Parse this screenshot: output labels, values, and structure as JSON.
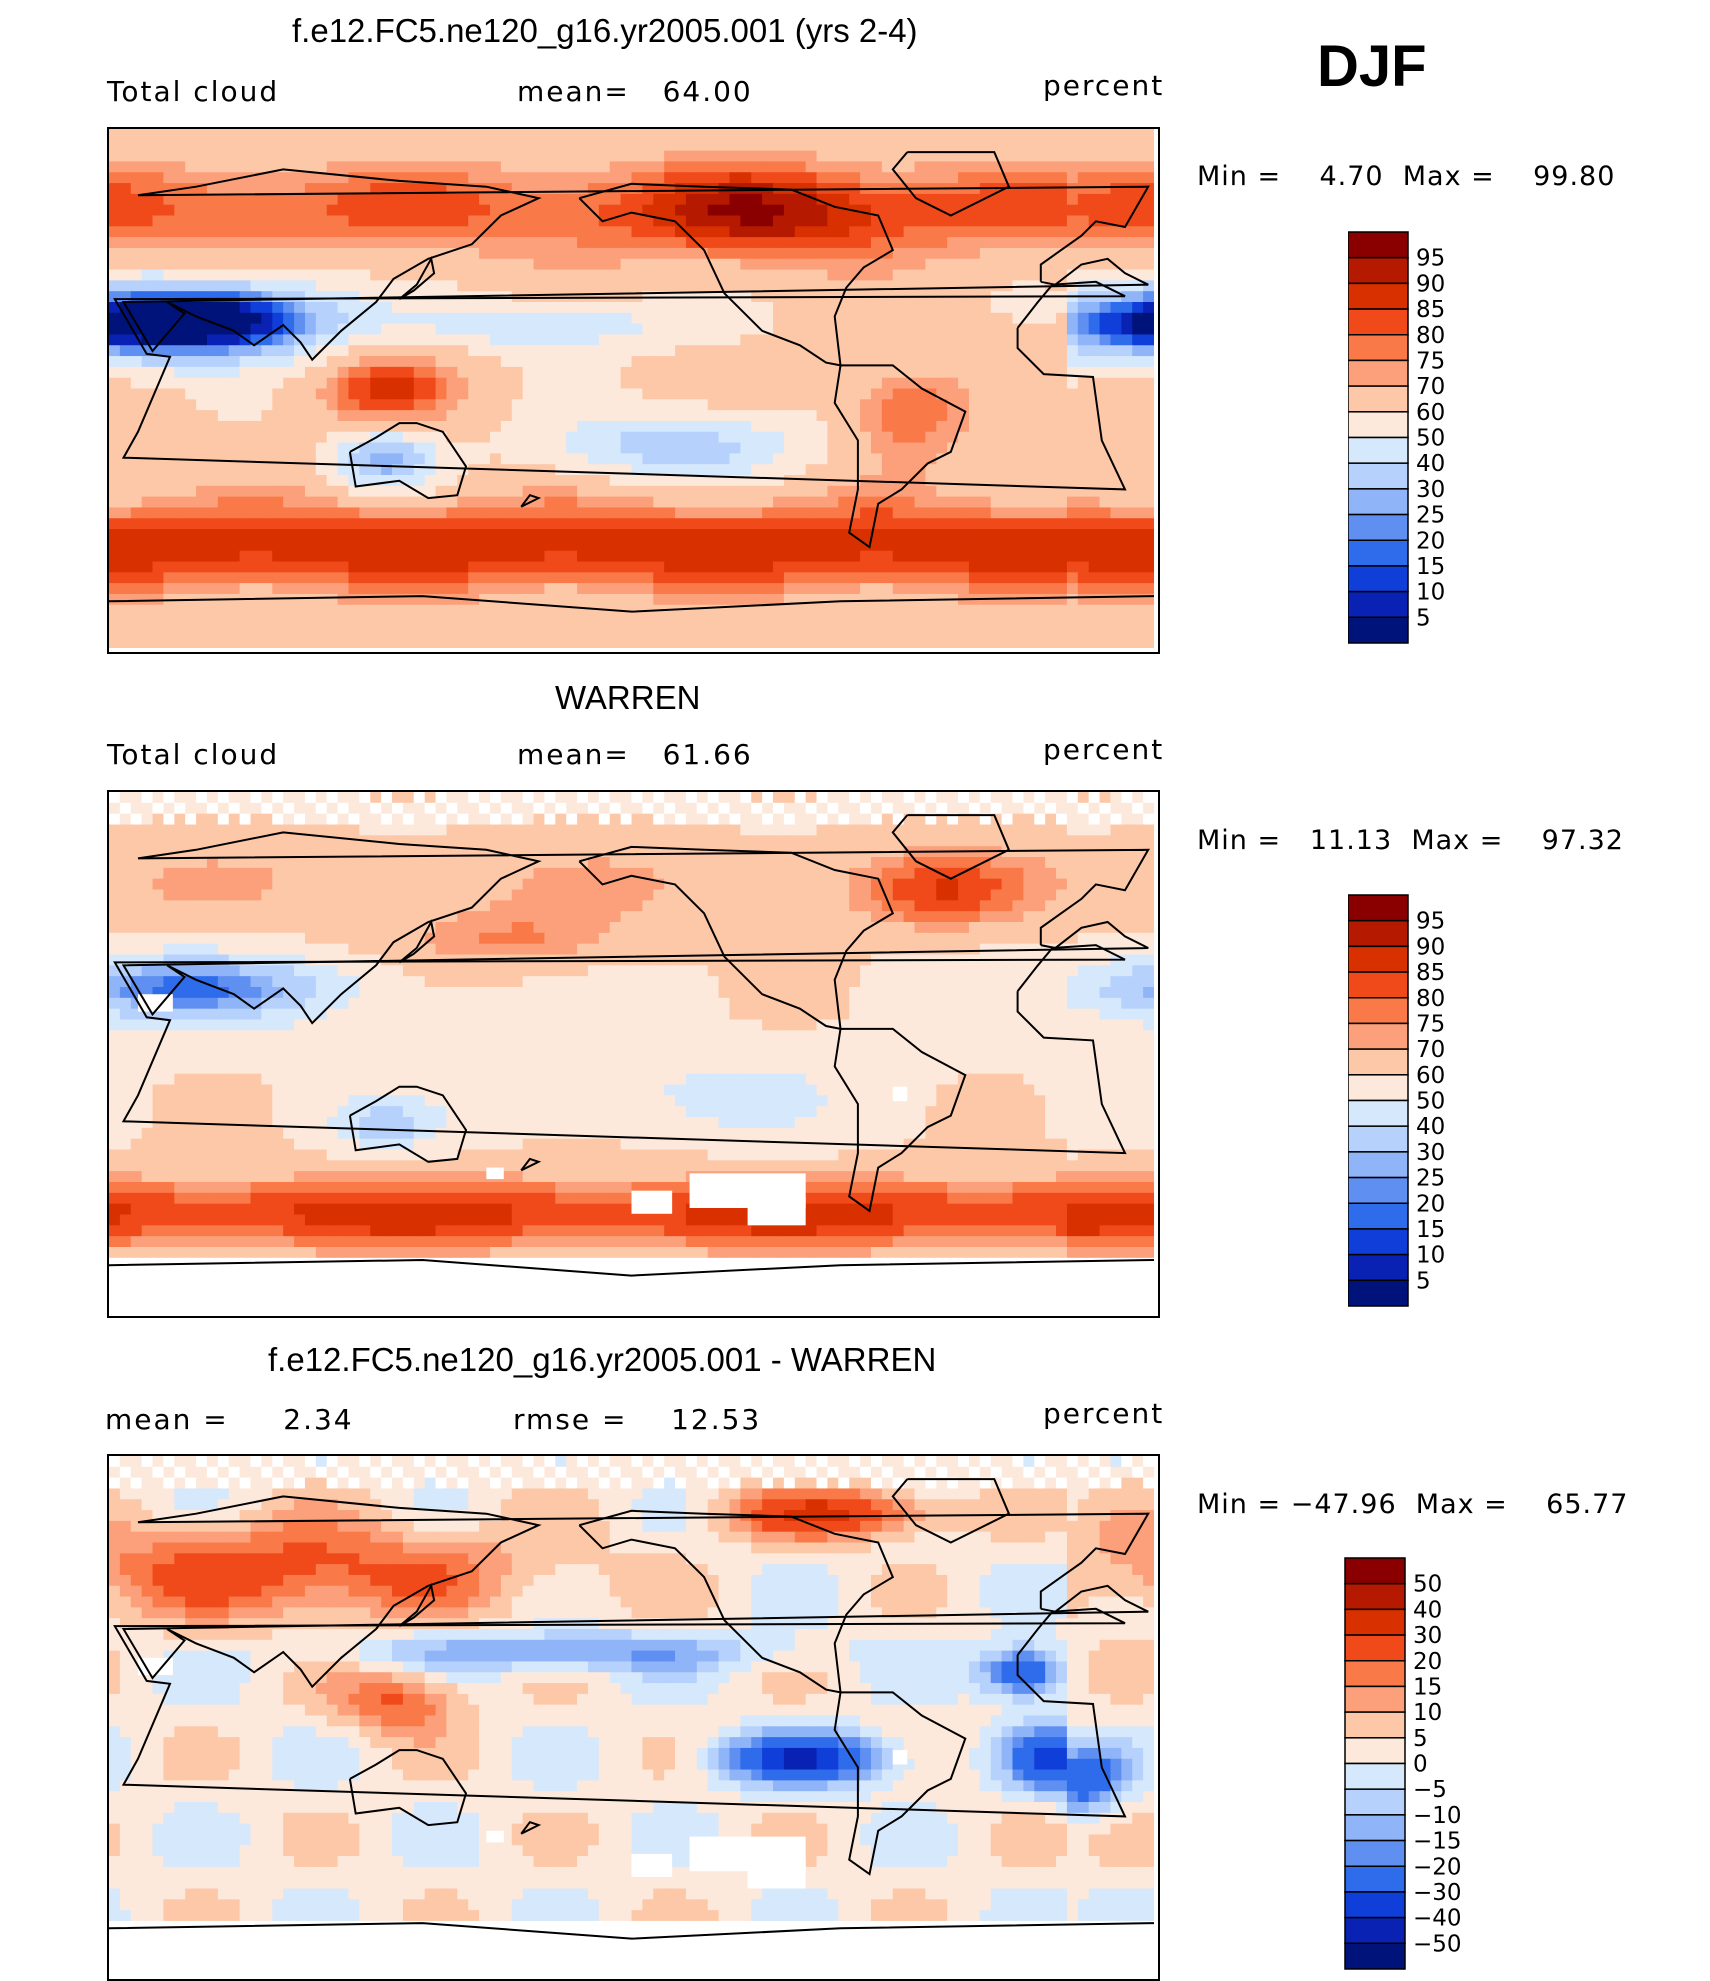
{
  "season": "DJF",
  "panels": [
    {
      "title": "f.e12.FC5.ne120_g16.yr2005.001 (yrs 2-4)",
      "left_label": "Total cloud",
      "center_label": "mean=   64.00",
      "units": "percent",
      "range_text": "Min =    4.70  Max =    99.80",
      "palette": "full",
      "colorbar": {
        "levels": [
          "95",
          "90",
          "85",
          "80",
          "75",
          "70",
          "60",
          "50",
          "40",
          "30",
          "25",
          "20",
          "15",
          "10",
          "5"
        ],
        "colors": [
          "#8a0000",
          "#b51a00",
          "#d93000",
          "#f04a1a",
          "#f97a48",
          "#fba07a",
          "#fdc8a8",
          "#fde9db",
          "#d6e8fb",
          "#b6d1fb",
          "#8fb4f7",
          "#5e8ff1",
          "#2f6cec",
          "#0f3fd8",
          "#0a22b4",
          "#00137a"
        ]
      }
    },
    {
      "title": "WARREN",
      "left_label": "Total cloud",
      "center_label": "mean=   61.66",
      "units": "percent",
      "range_text": "Min =   11.13  Max =    97.32",
      "palette": "obs",
      "colorbar": {
        "levels": [
          "95",
          "90",
          "85",
          "80",
          "75",
          "70",
          "60",
          "50",
          "40",
          "30",
          "25",
          "20",
          "15",
          "10",
          "5"
        ],
        "colors": [
          "#8a0000",
          "#b51a00",
          "#d93000",
          "#f04a1a",
          "#f97a48",
          "#fba07a",
          "#fdc8a8",
          "#fde9db",
          "#d6e8fb",
          "#b6d1fb",
          "#8fb4f7",
          "#5e8ff1",
          "#2f6cec",
          "#0f3fd8",
          "#0a22b4",
          "#00137a"
        ]
      }
    },
    {
      "title": "f.e12.FC5.ne120_g16.yr2005.001 - WARREN",
      "left_label": "mean =     2.34",
      "center_label": "rmse =    12.53",
      "units": "percent",
      "range_text": "Min = −47.96  Max =    65.77",
      "palette": "diff",
      "colorbar": {
        "levels": [
          "50",
          "40",
          "30",
          "20",
          "15",
          "10",
          "5",
          "0",
          "−5",
          "−10",
          "−15",
          "−20",
          "−30",
          "−40",
          "−50"
        ],
        "colors": [
          "#8a0000",
          "#b51a00",
          "#d93000",
          "#f04a1a",
          "#f97a48",
          "#fba07a",
          "#fdc8a8",
          "#fde9db",
          "#d6e8fb",
          "#b6d1fb",
          "#8fb4f7",
          "#5e8ff1",
          "#2f6cec",
          "#0f3fd8",
          "#0a22b4",
          "#00137a"
        ]
      }
    }
  ],
  "chart_data": [
    {
      "type": "heatmap",
      "title": "f.e12.FC5.ne120_g16.yr2005.001 (yrs 2-4)",
      "variable": "Total cloud",
      "units": "percent",
      "season": "DJF",
      "mean": 64.0,
      "min": 4.7,
      "max": 99.8,
      "contour_levels": [
        5,
        10,
        15,
        20,
        25,
        30,
        40,
        50,
        60,
        70,
        75,
        80,
        85,
        90,
        95
      ],
      "xlim": [
        0,
        360
      ],
      "ylim": [
        -90,
        90
      ]
    },
    {
      "type": "heatmap",
      "title": "WARREN",
      "variable": "Total cloud",
      "units": "percent",
      "season": "DJF",
      "mean": 61.66,
      "min": 11.13,
      "max": 97.32,
      "contour_levels": [
        5,
        10,
        15,
        20,
        25,
        30,
        40,
        50,
        60,
        70,
        75,
        80,
        85,
        90,
        95
      ],
      "xlim": [
        0,
        360
      ],
      "ylim": [
        -90,
        90
      ]
    },
    {
      "type": "heatmap",
      "title": "f.e12.FC5.ne120_g16.yr2005.001 - WARREN",
      "units": "percent",
      "season": "DJF",
      "mean": 2.34,
      "rmse": 12.53,
      "min": -47.96,
      "max": 65.77,
      "contour_levels": [
        -50,
        -40,
        -30,
        -20,
        -15,
        -10,
        -5,
        0,
        5,
        10,
        15,
        20,
        30,
        40,
        50
      ],
      "xlim": [
        0,
        360
      ],
      "ylim": [
        -90,
        90
      ]
    }
  ]
}
